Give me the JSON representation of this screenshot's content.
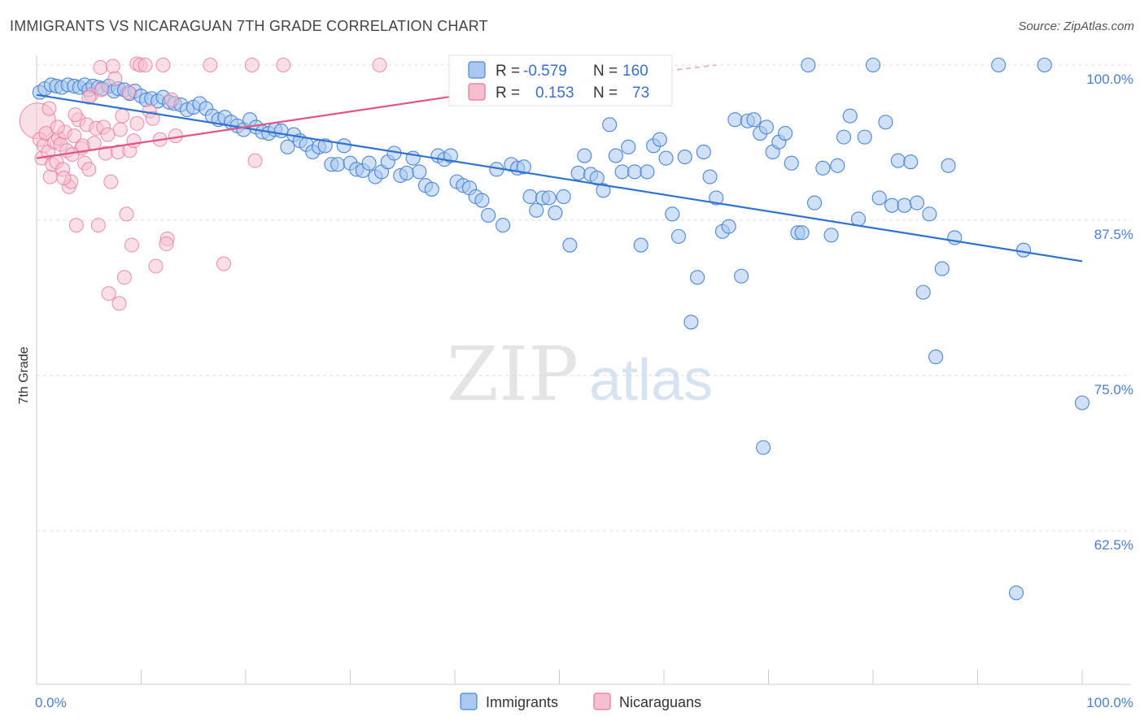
{
  "header": {
    "title": "IMMIGRANTS VS NICARAGUAN 7TH GRADE CORRELATION CHART",
    "source": "Source: ZipAtlas.com"
  },
  "colors": {
    "immigrants": "#4a86d8",
    "immigrants_fill": "#a9c8f0",
    "nicaraguans": "#e8739a",
    "nicaraguans_fill": "#f5bfd0",
    "tick": "#4a7fd0",
    "grid": "#dddddd"
  },
  "legend": {
    "r_label": "R =",
    "n_label": "N =",
    "rows": [
      {
        "r": "-0.579",
        "n": "160"
      },
      {
        "r": "0.153",
        "n": "73"
      }
    ]
  },
  "watermark": {
    "zip": "ZIP",
    "atlas": "atlas"
  },
  "chart_data": {
    "type": "scatter",
    "title": "IMMIGRANTS VS NICARAGUAN 7TH GRADE CORRELATION CHART",
    "xlabel": "",
    "ylabel": "7th Grade",
    "xlim": [
      0,
      100
    ],
    "ylim": [
      50,
      102
    ],
    "x_tick_labels": [
      "0.0%",
      "100.0%"
    ],
    "y_ticks": [
      100,
      87.5,
      75,
      62.5
    ],
    "y_tick_labels": [
      "100.0%",
      "87.5%",
      "75.0%",
      "62.5%"
    ],
    "grid": "horizontal dashed",
    "legend_position": "top-center and bottom",
    "series": [
      {
        "name": "Immigrants",
        "r": -0.579,
        "n": 160,
        "trend": {
          "x0": 0,
          "y0": 97.6,
          "x1": 100,
          "y1": 84.2
        },
        "points": [
          [
            0.3,
            97.8
          ],
          [
            0.8,
            98.1
          ],
          [
            1.4,
            98.4
          ],
          [
            1.9,
            98.3
          ],
          [
            2.4,
            98.2
          ],
          [
            3.0,
            98.4
          ],
          [
            3.6,
            98.3
          ],
          [
            4.1,
            98.2
          ],
          [
            4.6,
            98.4
          ],
          [
            5.0,
            98.0
          ],
          [
            5.4,
            98.3
          ],
          [
            5.9,
            98.2
          ],
          [
            6.3,
            98.1
          ],
          [
            6.9,
            98.3
          ],
          [
            7.4,
            97.9
          ],
          [
            7.8,
            98.1
          ],
          [
            8.4,
            98.0
          ],
          [
            8.9,
            97.7
          ],
          [
            9.4,
            97.9
          ],
          [
            10.0,
            97.5
          ],
          [
            10.5,
            97.2
          ],
          [
            11.0,
            97.3
          ],
          [
            11.6,
            97.1
          ],
          [
            12.1,
            97.4
          ],
          [
            12.7,
            97.0
          ],
          [
            13.2,
            96.9
          ],
          [
            13.8,
            96.8
          ],
          [
            14.4,
            96.4
          ],
          [
            15.0,
            96.6
          ],
          [
            15.6,
            96.9
          ],
          [
            16.2,
            96.5
          ],
          [
            16.8,
            95.9
          ],
          [
            17.4,
            95.6
          ],
          [
            18.0,
            95.8
          ],
          [
            18.6,
            95.4
          ],
          [
            19.2,
            95.1
          ],
          [
            19.8,
            94.8
          ],
          [
            20.4,
            95.6
          ],
          [
            21.0,
            95.0
          ],
          [
            21.6,
            94.6
          ],
          [
            22.2,
            94.5
          ],
          [
            22.8,
            94.8
          ],
          [
            23.4,
            94.7
          ],
          [
            24.0,
            93.4
          ],
          [
            24.6,
            94.4
          ],
          [
            25.2,
            93.9
          ],
          [
            25.8,
            93.6
          ],
          [
            26.4,
            93.0
          ],
          [
            27.0,
            93.4
          ],
          [
            27.6,
            93.5
          ],
          [
            28.2,
            92.0
          ],
          [
            28.8,
            92.0
          ],
          [
            29.4,
            93.5
          ],
          [
            30.0,
            92.1
          ],
          [
            30.6,
            91.6
          ],
          [
            31.2,
            91.5
          ],
          [
            31.8,
            92.1
          ],
          [
            32.4,
            91.0
          ],
          [
            33.0,
            91.4
          ],
          [
            33.6,
            92.2
          ],
          [
            34.2,
            92.9
          ],
          [
            34.8,
            91.1
          ],
          [
            35.4,
            91.3
          ],
          [
            36.0,
            92.5
          ],
          [
            36.6,
            91.4
          ],
          [
            37.2,
            90.3
          ],
          [
            37.8,
            90.0
          ],
          [
            38.4,
            92.7
          ],
          [
            39.0,
            92.4
          ],
          [
            39.6,
            92.7
          ],
          [
            40.2,
            90.6
          ],
          [
            40.8,
            90.3
          ],
          [
            41.4,
            90.1
          ],
          [
            42.0,
            89.4
          ],
          [
            42.6,
            89.1
          ],
          [
            43.2,
            87.9
          ],
          [
            44.0,
            91.6
          ],
          [
            44.6,
            87.1
          ],
          [
            45.4,
            92.0
          ],
          [
            46.0,
            91.7
          ],
          [
            46.6,
            91.8
          ],
          [
            47.2,
            89.4
          ],
          [
            47.8,
            88.3
          ],
          [
            48.4,
            89.3
          ],
          [
            49.0,
            89.3
          ],
          [
            49.6,
            88.1
          ],
          [
            50.4,
            89.4
          ],
          [
            51.0,
            85.5
          ],
          [
            51.8,
            91.3
          ],
          [
            52.4,
            92.7
          ],
          [
            53.0,
            91.2
          ],
          [
            53.6,
            90.9
          ],
          [
            54.2,
            89.9
          ],
          [
            54.8,
            95.2
          ],
          [
            55.4,
            92.7
          ],
          [
            56.0,
            91.4
          ],
          [
            56.6,
            93.4
          ],
          [
            57.2,
            91.4
          ],
          [
            57.8,
            85.5
          ],
          [
            58.4,
            91.4
          ],
          [
            59.0,
            93.5
          ],
          [
            59.6,
            94.0
          ],
          [
            60.2,
            92.5
          ],
          [
            60.8,
            88.0
          ],
          [
            61.4,
            86.2
          ],
          [
            62.0,
            92.6
          ],
          [
            62.6,
            79.3
          ],
          [
            63.2,
            82.9
          ],
          [
            63.8,
            93.0
          ],
          [
            64.4,
            91.0
          ],
          [
            65.0,
            89.3
          ],
          [
            65.6,
            86.6
          ],
          [
            66.2,
            87.0
          ],
          [
            66.8,
            95.6
          ],
          [
            67.4,
            83.0
          ],
          [
            68.0,
            95.5
          ],
          [
            68.6,
            95.6
          ],
          [
            69.2,
            94.5
          ],
          [
            69.8,
            95.0
          ],
          [
            70.4,
            93.0
          ],
          [
            71.0,
            93.8
          ],
          [
            71.6,
            94.5
          ],
          [
            72.2,
            92.1
          ],
          [
            72.8,
            86.5
          ],
          [
            73.2,
            86.5
          ],
          [
            73.8,
            100.0
          ],
          [
            74.4,
            88.9
          ],
          [
            75.2,
            91.7
          ],
          [
            76.0,
            86.3
          ],
          [
            76.6,
            91.9
          ],
          [
            77.2,
            94.2
          ],
          [
            77.8,
            95.9
          ],
          [
            78.6,
            87.6
          ],
          [
            79.2,
            94.2
          ],
          [
            80.0,
            100.0
          ],
          [
            80.6,
            89.3
          ],
          [
            81.2,
            95.4
          ],
          [
            81.8,
            88.7
          ],
          [
            82.4,
            92.3
          ],
          [
            83.0,
            88.7
          ],
          [
            83.6,
            92.2
          ],
          [
            84.2,
            88.9
          ],
          [
            84.8,
            81.7
          ],
          [
            85.4,
            88.0
          ],
          [
            86.0,
            76.5
          ],
          [
            86.6,
            83.6
          ],
          [
            87.2,
            91.9
          ],
          [
            87.8,
            86.1
          ],
          [
            92.0,
            100.0
          ],
          [
            93.7,
            57.5
          ],
          [
            94.4,
            85.1
          ],
          [
            96.4,
            100.0
          ],
          [
            100.0,
            72.8
          ],
          [
            69.5,
            69.2
          ]
        ]
      },
      {
        "name": "Nicaraguans",
        "r": 0.153,
        "n": 73,
        "trend": {
          "x0": 0,
          "y0": 92.5,
          "x1": 40.0,
          "y1": 97.5,
          "dashed_to": {
            "x": 65.0,
            "y": 100.0
          }
        },
        "points": [
          [
            0.1,
            95.5
          ],
          [
            0.3,
            94.0
          ],
          [
            0.5,
            92.5
          ],
          [
            0.7,
            93.5
          ],
          [
            0.9,
            94.5
          ],
          [
            1.1,
            93.0
          ],
          [
            1.3,
            91.0
          ],
          [
            1.5,
            92.0
          ],
          [
            1.7,
            93.8
          ],
          [
            1.9,
            92.2
          ],
          [
            2.1,
            94.1
          ],
          [
            2.3,
            93.6
          ],
          [
            2.5,
            91.6
          ],
          [
            2.7,
            94.6
          ],
          [
            2.9,
            93.1
          ],
          [
            3.1,
            90.2
          ],
          [
            3.3,
            90.6
          ],
          [
            3.6,
            94.3
          ],
          [
            3.8,
            87.1
          ],
          [
            4.0,
            95.6
          ],
          [
            4.3,
            93.3
          ],
          [
            4.6,
            92.1
          ],
          [
            4.8,
            95.2
          ],
          [
            5.0,
            91.6
          ],
          [
            5.2,
            97.6
          ],
          [
            5.5,
            93.7
          ],
          [
            5.7,
            94.9
          ],
          [
            5.9,
            87.1
          ],
          [
            6.1,
            99.8
          ],
          [
            6.4,
            95.0
          ],
          [
            6.6,
            92.9
          ],
          [
            6.8,
            94.4
          ],
          [
            7.1,
            90.6
          ],
          [
            7.3,
            99.9
          ],
          [
            7.5,
            98.9
          ],
          [
            7.8,
            93.0
          ],
          [
            8.0,
            94.8
          ],
          [
            8.2,
            95.9
          ],
          [
            8.4,
            82.9
          ],
          [
            8.6,
            88.0
          ],
          [
            8.9,
            93.1
          ],
          [
            9.1,
            85.5
          ],
          [
            9.3,
            93.9
          ],
          [
            9.6,
            100.1
          ],
          [
            9.9,
            100.0
          ],
          [
            10.4,
            100.0
          ],
          [
            10.8,
            96.3
          ],
          [
            11.1,
            95.7
          ],
          [
            11.4,
            83.8
          ],
          [
            11.8,
            94.0
          ],
          [
            12.1,
            100.0
          ],
          [
            12.5,
            86.0
          ],
          [
            12.9,
            97.2
          ],
          [
            13.3,
            94.3
          ],
          [
            16.6,
            100.0
          ],
          [
            17.9,
            84.0
          ],
          [
            20.6,
            100.0
          ],
          [
            20.9,
            92.3
          ],
          [
            23.6,
            100.0
          ],
          [
            32.8,
            100.0
          ],
          [
            6.9,
            81.6
          ],
          [
            7.9,
            80.8
          ],
          [
            6.2,
            98.0
          ],
          [
            5.0,
            97.4
          ],
          [
            4.4,
            93.5
          ],
          [
            3.4,
            92.8
          ],
          [
            2.0,
            95.0
          ],
          [
            1.2,
            96.5
          ],
          [
            8.8,
            97.8
          ],
          [
            12.4,
            85.6
          ],
          [
            3.7,
            96.0
          ],
          [
            2.6,
            90.9
          ],
          [
            9.6,
            95.3
          ]
        ]
      }
    ]
  },
  "bottom_legend": [
    {
      "label": "Immigrants"
    },
    {
      "label": "Nicaraguans"
    }
  ]
}
